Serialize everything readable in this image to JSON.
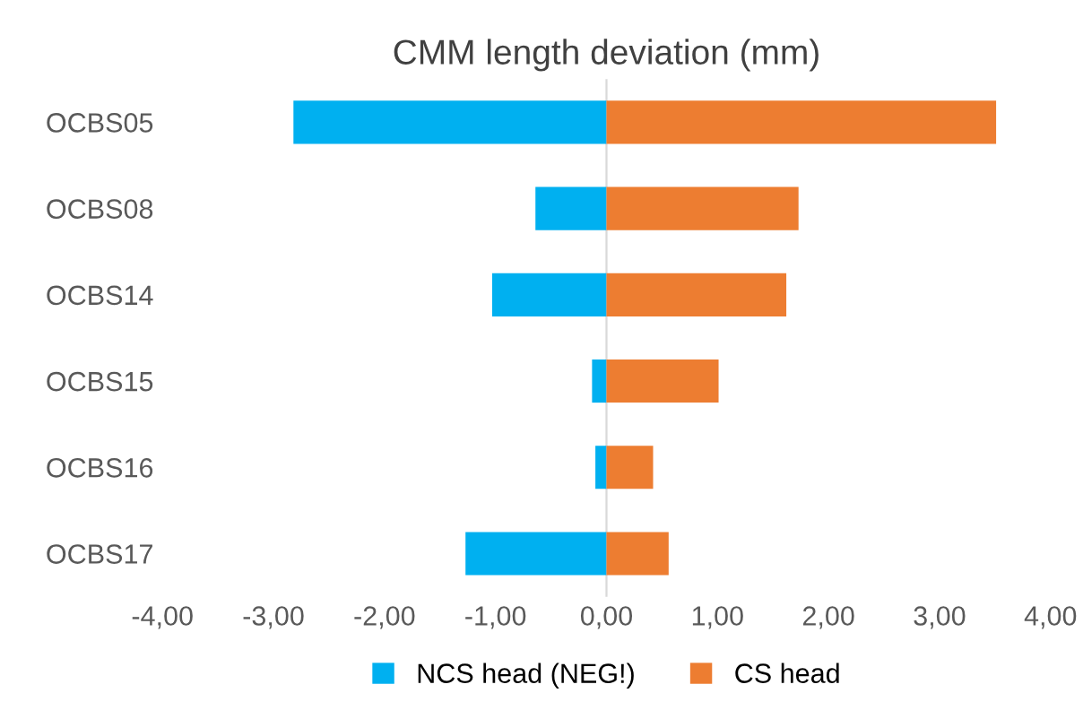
{
  "chart_data": {
    "type": "bar",
    "orientation": "horizontal",
    "stacked": true,
    "title": "CMM length deviation (mm)",
    "categories": [
      "OCBS05",
      "OCBS08",
      "OCBS14",
      "OCBS15",
      "OCBS16",
      "OCBS17"
    ],
    "series": [
      {
        "name": "NCS head (NEG!)",
        "color": "#00b0f0",
        "values": [
          -2.82,
          -0.64,
          -1.03,
          -0.13,
          -0.1,
          -1.27
        ]
      },
      {
        "name": "CS head",
        "color": "#ed7d31",
        "values": [
          3.51,
          1.73,
          1.62,
          1.01,
          0.42,
          0.56
        ]
      }
    ],
    "xlim": [
      -4,
      4
    ],
    "xticks": [
      {
        "value": -4,
        "label": "-4,00"
      },
      {
        "value": -3,
        "label": "-3,00"
      },
      {
        "value": -2,
        "label": "-2,00"
      },
      {
        "value": -1,
        "label": "-1,00"
      },
      {
        "value": 0,
        "label": "0,00"
      },
      {
        "value": 1,
        "label": "1,00"
      },
      {
        "value": 2,
        "label": "2,00"
      },
      {
        "value": 3,
        "label": "3,00"
      },
      {
        "value": 4,
        "label": "4,00"
      }
    ],
    "legend": "bottom"
  }
}
